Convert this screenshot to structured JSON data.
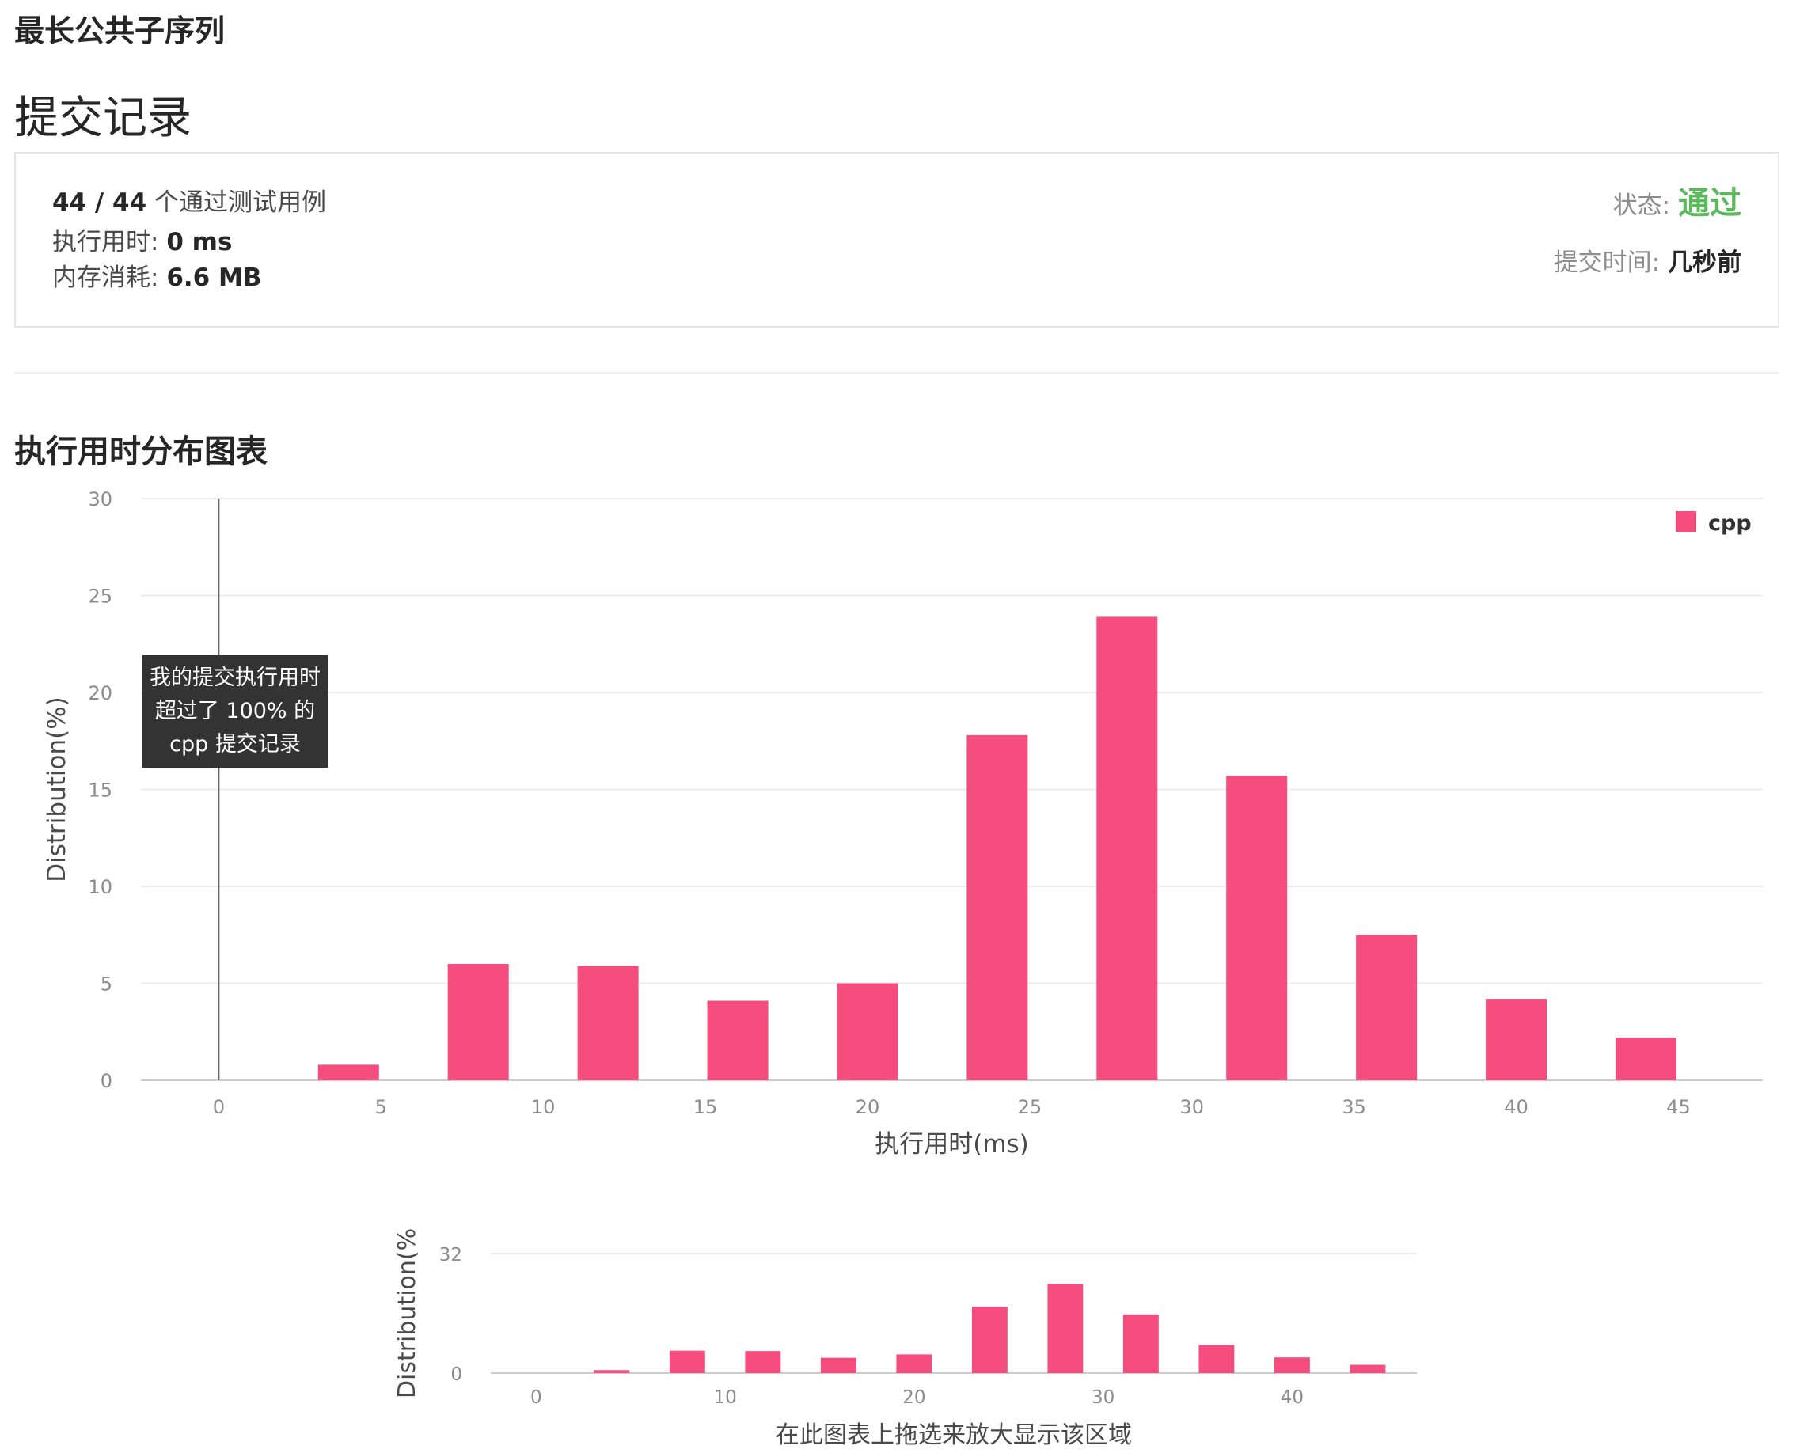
{
  "problem": {
    "title": "最长公共子序列"
  },
  "submission": {
    "heading": "提交记录",
    "passed_cases": "44 / 44",
    "passed_label": "个通过测试用例",
    "runtime_label": "执行用时:",
    "runtime_value": "0 ms",
    "memory_label": "内存消耗:",
    "memory_value": "6.6 MB",
    "status_label": "状态:",
    "status_value": "通过",
    "time_label": "提交时间:",
    "time_value": "几秒前",
    "status_color": "#5cb85c"
  },
  "chart_section": {
    "heading": "执行用时分布图表"
  },
  "tooltip": {
    "lines": [
      "我的提交执行用时",
      "超过了 100% 的",
      "cpp 提交记录"
    ]
  },
  "chart_data": [
    {
      "type": "bar",
      "x": [
        4,
        8,
        12,
        16,
        20,
        24,
        28,
        32,
        36,
        40,
        44
      ],
      "series": [
        {
          "name": "cpp",
          "values": [
            0.8,
            6.0,
            5.9,
            4.1,
            5.0,
            17.8,
            23.9,
            15.7,
            7.5,
            4.2,
            2.2
          ],
          "color": "#f44d7e"
        }
      ],
      "xlabel": "执行用时(ms)",
      "ylabel": "Distribution(%)",
      "xlim": [
        -2.4,
        47.6
      ],
      "ylim": [
        0,
        30
      ],
      "xticks": [
        0,
        5,
        10,
        15,
        20,
        25,
        30,
        35,
        40,
        45
      ],
      "yticks": [
        0,
        5,
        10,
        15,
        20,
        25,
        30
      ],
      "my_submission_x": 0,
      "grid": true,
      "legend": "top-right"
    },
    {
      "type": "bar",
      "x": [
        4,
        8,
        12,
        16,
        20,
        24,
        28,
        32,
        36,
        40,
        44
      ],
      "series": [
        {
          "name": "cpp",
          "values": [
            0.8,
            6.0,
            5.9,
            4.1,
            5.0,
            17.8,
            23.9,
            15.7,
            7.5,
            4.2,
            2.2
          ],
          "color": "#f44d7e"
        }
      ],
      "xlabel": "在此图表上拖选来放大显示该区域",
      "ylabel": "Distribution(%",
      "xlim": [
        -2.4,
        46.6
      ],
      "ylim": [
        0,
        32
      ],
      "xticks": [
        0,
        10,
        20,
        30,
        40
      ],
      "yticks": [
        0,
        32
      ],
      "grid": true,
      "legend": "none"
    }
  ]
}
